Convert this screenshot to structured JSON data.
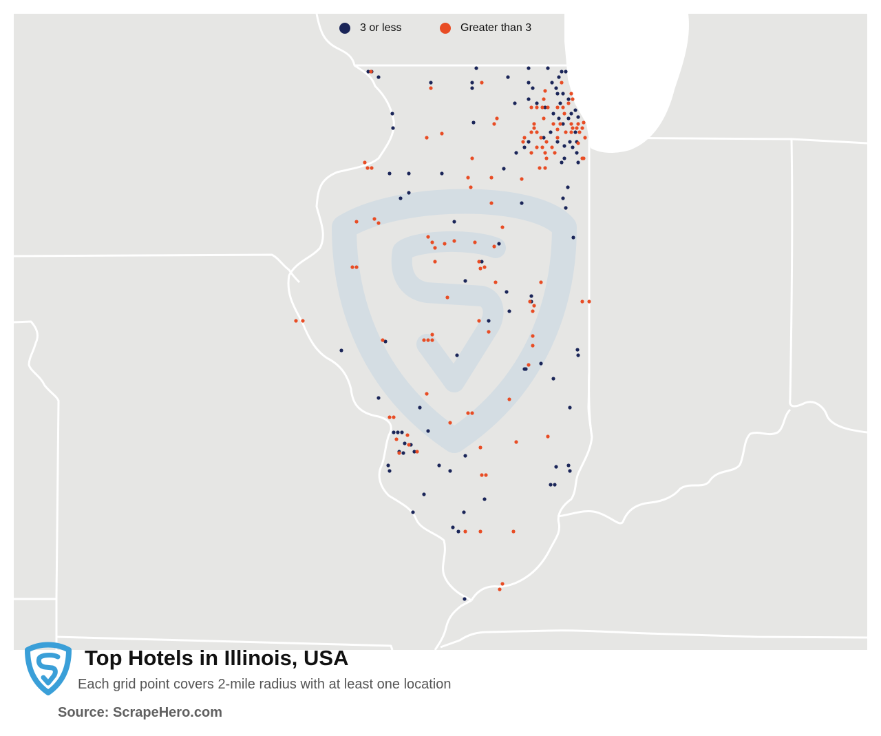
{
  "legend": [
    {
      "label": "3 or less",
      "color": "#1a2558"
    },
    {
      "label": "Greater than 3",
      "color": "#e84c24"
    }
  ],
  "title": "Top Hotels in Illinois, USA",
  "subtitle": "Each grid point covers 2-mile radius with at least one location",
  "source": "Source: ScrapeHero.com",
  "colors": {
    "land": "#e6e6e4",
    "water": "#ffffff",
    "border": "#ffffff",
    "watermark": "#d4dde3",
    "logo": "#3a9fd8"
  },
  "icons": [
    "scrapehero-watermark-icon",
    "scrapehero-logo-icon"
  ]
}
